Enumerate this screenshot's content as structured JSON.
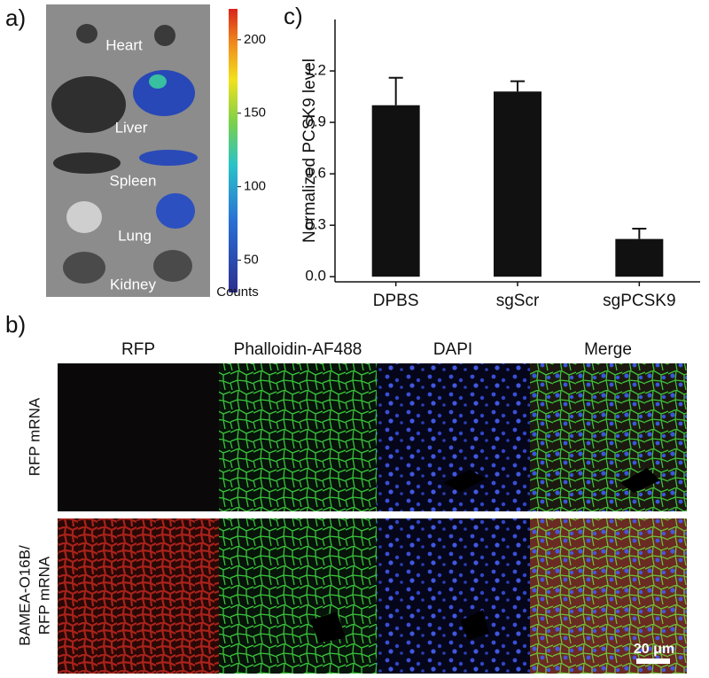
{
  "panel_a": {
    "label": "a)",
    "organs": [
      "Heart",
      "Liver",
      "Spleen",
      "Lung",
      "Kidney"
    ],
    "colorbar": {
      "label": "Counts",
      "lim": [
        28,
        221
      ],
      "ticks": [
        50,
        100,
        150,
        200
      ]
    }
  },
  "chart_data": {
    "type": "bar",
    "panel_label": "c)",
    "ylabel": "Normalized PCSK9 level",
    "categories": [
      "DPBS",
      "sgScr",
      "sgPCSK9"
    ],
    "values": [
      1.0,
      1.08,
      0.22
    ],
    "errors": [
      0.16,
      0.06,
      0.06
    ],
    "color": "#111111",
    "ylim": [
      -0.03,
      1.5
    ],
    "yticks": [
      {
        "value": 0,
        "label": "0.0"
      },
      0.3,
      0.6,
      0.9,
      1.2
    ]
  },
  "panel_b": {
    "label": "b)",
    "columns": [
      "RFP",
      "Phalloidin-AF488",
      "DAPI",
      "Merge"
    ],
    "rows": [
      [
        "RFP mRNA"
      ],
      [
        "BAMEA-O16B/",
        "RFP mRNA"
      ]
    ],
    "scale_bar": "20 μm"
  }
}
